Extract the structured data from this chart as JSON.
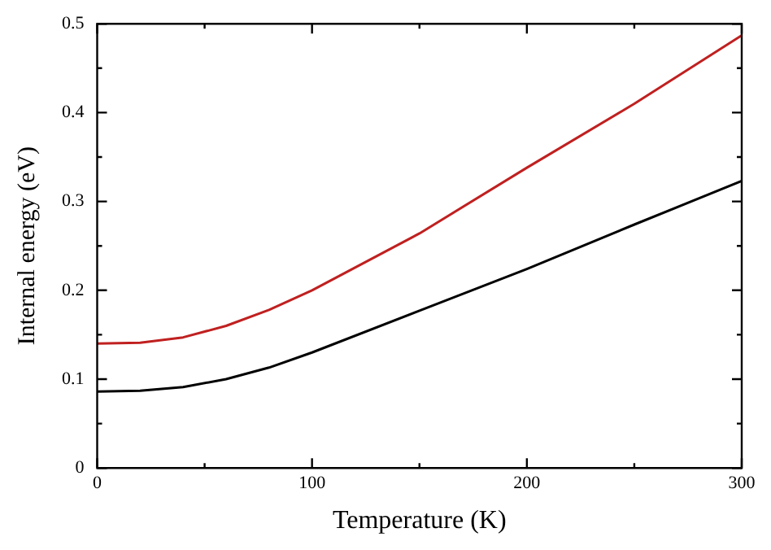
{
  "chart_data": {
    "type": "line",
    "xlabel": "Temperature (K)",
    "ylabel": "Internal energy (eV)",
    "x": [
      0,
      20,
      40,
      60,
      80,
      100,
      150,
      200,
      250,
      300
    ],
    "series": [
      {
        "color": "#c02020",
        "values": [
          0.14,
          0.141,
          0.147,
          0.16,
          0.178,
          0.2,
          0.264,
          0.338,
          0.41,
          0.487
        ]
      },
      {
        "color": "#000000",
        "values": [
          0.086,
          0.087,
          0.091,
          0.1,
          0.113,
          0.13,
          0.177,
          0.224,
          0.274,
          0.323
        ]
      }
    ],
    "xlim": [
      0,
      300
    ],
    "ylim": [
      0,
      0.5
    ],
    "xticks": [
      0,
      {
        "value": 50,
        "label": null
      },
      100,
      {
        "value": 150,
        "label": null
      },
      200,
      {
        "value": 250,
        "label": null
      },
      300
    ],
    "yticks": [
      0,
      {
        "value": 0.05,
        "label": null
      },
      0.1,
      {
        "value": 0.15,
        "label": null
      },
      0.2,
      {
        "value": 0.25,
        "label": null
      },
      0.3,
      {
        "value": 0.35,
        "label": null
      },
      0.4,
      {
        "value": 0.45,
        "label": null
      },
      0.5
    ],
    "grid": false,
    "legend": false,
    "marker": "none",
    "line_style": "solid"
  }
}
